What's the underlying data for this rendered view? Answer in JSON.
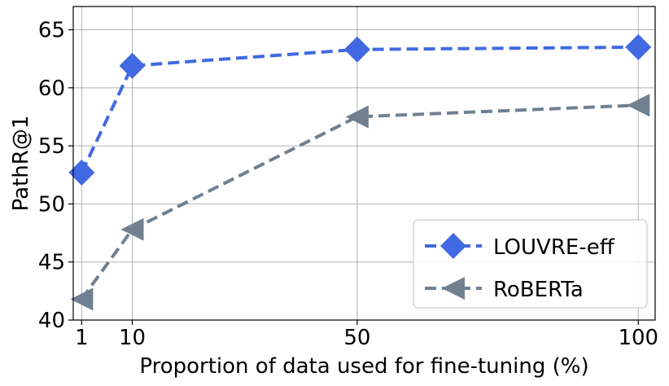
{
  "chart_data": {
    "type": "line",
    "xlabel": "Proportion of data used for fine-tuning (%)",
    "ylabel": "PathR@1",
    "x": [
      1,
      10,
      50,
      100
    ],
    "xlim": [
      -0.5,
      103
    ],
    "ylim": [
      40,
      67
    ],
    "xticks": [
      1,
      10,
      50,
      100
    ],
    "yticks": [
      40,
      45,
      50,
      55,
      60,
      65
    ],
    "grid": true,
    "legend_position": "lower-right",
    "series": [
      {
        "name": "LOUVRE-eff",
        "values": [
          52.7,
          61.9,
          63.3,
          63.5
        ],
        "color": "#4169e1",
        "marker": "diamond",
        "linestyle": "dashed"
      },
      {
        "name": "RoBERTa",
        "values": [
          41.8,
          47.8,
          57.5,
          58.5
        ],
        "color": "#708090",
        "marker": "triangle-left",
        "linestyle": "dashed"
      }
    ]
  }
}
